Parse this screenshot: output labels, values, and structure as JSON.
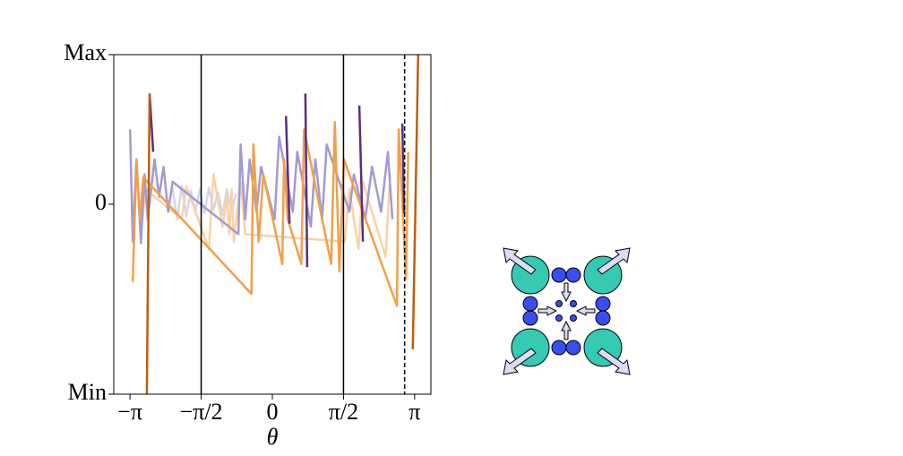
{
  "chart_data": {
    "type": "line",
    "xlabel": "θ",
    "xlim": [
      -3.5,
      3.5
    ],
    "ylim": [
      -1.27,
      1
    ],
    "xticks": [
      {
        "value": -3.1416,
        "label": "−π"
      },
      {
        "value": -1.5708,
        "label": "−π/2"
      },
      0,
      {
        "value": 1.5708,
        "label": "π/2"
      },
      {
        "value": 3.1416,
        "label": "π"
      }
    ],
    "yticks": [
      {
        "value": -1.27,
        "label": "Min"
      },
      0,
      {
        "value": 1,
        "label": "Max"
      }
    ],
    "vlines": [
      {
        "x": -1.5708,
        "dashed": false
      },
      {
        "x": 1.5708,
        "dashed": false
      },
      {
        "x": 2.92,
        "dashed": true
      }
    ],
    "series": [
      {
        "color": "#d5d5ee",
        "x": [
          -2.2,
          -2.1,
          -2.0,
          -1.9,
          -1.8,
          -1.7,
          -1.6,
          -1.5,
          -1.4,
          -1.3,
          -1.2,
          -1.1,
          -1.0,
          -0.9,
          -0.8
        ],
        "values": [
          0.1,
          -0.1,
          0.12,
          -0.08,
          0.09,
          -0.05,
          0.1,
          -0.06,
          0.11,
          -0.04,
          0.08,
          -0.07,
          0.1,
          -0.05,
          0.07
        ]
      },
      {
        "color": "#f8d2a6",
        "x": [
          -2.9,
          -2.8,
          -2.0,
          -1.9,
          -1.4,
          -1.3,
          -1.1,
          -1.0,
          -0.95,
          -0.9,
          -0.85,
          -0.7,
          -0.6,
          1.6,
          1.7,
          1.9,
          2.0,
          2.5,
          2.6
        ],
        "values": [
          -0.2,
          0.1,
          -0.1,
          0.12,
          -0.3,
          0.2,
          -0.15,
          0.05,
          -0.2,
          0.1,
          -0.25,
          0.15,
          -0.2,
          -0.25,
          0.1,
          -0.3,
          0.15,
          -0.35,
          0.2
        ]
      },
      {
        "color": "#a29bd0",
        "x": [
          -3.14,
          -3.08,
          -3.0,
          -2.9,
          -2.82,
          -2.75,
          -2.6,
          -2.5,
          -2.4,
          -2.3,
          -2.2,
          -0.75,
          -0.7,
          -0.6,
          -0.5,
          -0.35,
          -0.25,
          0.05,
          0.15,
          0.45,
          0.55,
          0.85,
          0.95,
          1.1,
          1.2,
          1.7,
          1.8,
          2.05,
          2.2,
          2.4,
          2.55,
          2.65
        ],
        "values": [
          0.5,
          -0.25,
          0.3,
          -0.26,
          0.2,
          -0.1,
          0.3,
          0.05,
          0.25,
          -0.05,
          0.15,
          -0.2,
          0.4,
          -0.1,
          0.3,
          -0.05,
          0.25,
          -0.1,
          0.45,
          -0.05,
          0.35,
          -0.15,
          0.3,
          -0.1,
          0.4,
          -0.05,
          0.2,
          -0.1,
          0.25,
          -0.05,
          0.35,
          -0.1
        ]
      },
      {
        "color": "#f0a04a",
        "x": [
          -3.08,
          -3.0,
          -2.92,
          -2.85,
          -0.46,
          -0.42,
          -0.3,
          -0.2,
          0.22,
          0.26,
          0.34,
          0.64,
          0.7,
          1.3,
          1.38,
          1.48,
          1.58,
          2.75,
          2.79,
          2.95,
          3.0
        ],
        "values": [
          -0.52,
          0.29,
          -0.1,
          0.18,
          -0.6,
          0.4,
          -0.25,
          0.2,
          -0.4,
          0.3,
          -0.1,
          -0.4,
          0.5,
          -0.4,
          0.55,
          -0.45,
          0.3,
          -0.68,
          0.5,
          -0.5,
          0.35
        ]
      },
      {
        "color": "#5a2d82",
        "x": [
          -2.71,
          -2.63,
          -2.6,
          0.3,
          0.38,
          0.5,
          0.73,
          0.77,
          0.9,
          1.92,
          2.0,
          2.2,
          2.87,
          2.91
        ],
        "values": [
          0.74,
          0.35,
          null,
          0.59,
          -0.13,
          null,
          0.74,
          -0.42,
          null,
          0.66,
          -0.25,
          null,
          0.54,
          -0.06
        ]
      },
      {
        "color": "#b8600e",
        "x": [
          -2.71,
          -2.77,
          0,
          3.1,
          3.22
        ],
        "values": [
          0.74,
          -1.27,
          null,
          -0.97,
          1.0
        ]
      }
    ]
  }
}
